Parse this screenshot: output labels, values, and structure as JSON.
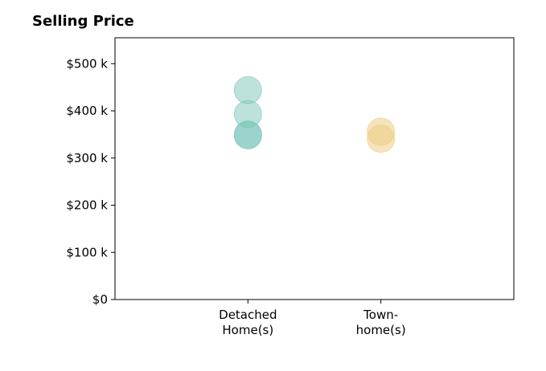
{
  "chart_data": {
    "type": "scatter",
    "title": "Selling Price",
    "xlabel": "",
    "ylabel": "",
    "categories": [
      [
        "Detached",
        "Home(s)"
      ],
      [
        "Town-",
        "home(s)"
      ]
    ],
    "y_ticks": [
      {
        "value": 0,
        "label": "$0"
      },
      {
        "value": 100,
        "label": "$100 k"
      },
      {
        "value": 200,
        "label": "$200 k"
      },
      {
        "value": 300,
        "label": "$300 k"
      },
      {
        "value": 400,
        "label": "$400 k"
      },
      {
        "value": 500,
        "label": "$500 k"
      }
    ],
    "ylim": [
      0,
      555
    ],
    "xlim": [
      -1,
      2
    ],
    "grid": false,
    "series": [
      {
        "category_index": 0,
        "color": "#7cc5b9",
        "values": [
          444,
          393,
          350,
          348
        ]
      },
      {
        "category_index": 1,
        "color": "#ecc97a",
        "values": [
          356,
          341
        ]
      }
    ]
  }
}
